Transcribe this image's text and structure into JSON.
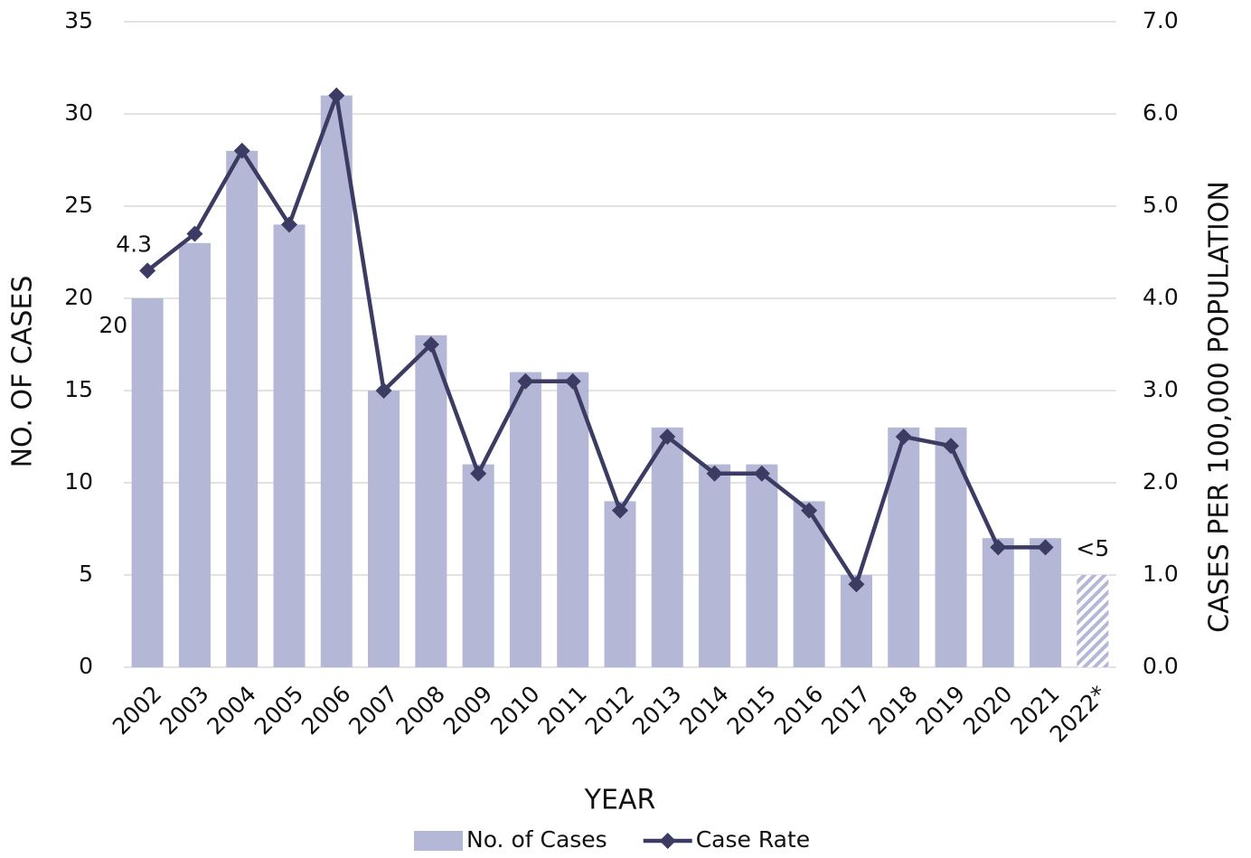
{
  "chart_data": {
    "type": "bar-line",
    "x_label": "YEAR",
    "y_label": "NO. OF CASES",
    "y2_label": "CASES PER 100,000 POPULATION",
    "categories": [
      "2002",
      "2003",
      "2004",
      "2005",
      "2006",
      "2007",
      "2008",
      "2009",
      "2010",
      "2011",
      "2012",
      "2013",
      "2014",
      "2015",
      "2016",
      "2017",
      "2018",
      "2019",
      "2020",
      "2021",
      "2022*"
    ],
    "series": [
      {
        "name": "No. of Cases",
        "type": "bar",
        "color": "#b5b7d6",
        "values": [
          20,
          23,
          28,
          24,
          31,
          15,
          18,
          11,
          16,
          16,
          9,
          13,
          11,
          11,
          9,
          5,
          13,
          13,
          7,
          7,
          5
        ],
        "value_labels": [
          "20",
          null,
          null,
          null,
          null,
          null,
          null,
          null,
          null,
          null,
          null,
          null,
          null,
          null,
          null,
          null,
          null,
          null,
          null,
          null,
          "<5"
        ],
        "hatched": [
          false,
          false,
          false,
          false,
          false,
          false,
          false,
          false,
          false,
          false,
          false,
          false,
          false,
          false,
          false,
          false,
          false,
          false,
          false,
          false,
          true
        ]
      },
      {
        "name": "Case Rate",
        "type": "line",
        "axis": "y2",
        "color": "#3b3b63",
        "values": [
          4.3,
          4.7,
          5.6,
          4.8,
          6.2,
          3.0,
          3.5,
          2.1,
          3.1,
          3.1,
          1.7,
          2.5,
          2.1,
          2.1,
          1.7,
          0.9,
          2.5,
          2.4,
          1.3,
          1.3,
          null
        ],
        "value_labels": [
          "4.3",
          null,
          null,
          null,
          null,
          null,
          null,
          null,
          null,
          null,
          null,
          null,
          null,
          null,
          null,
          null,
          null,
          null,
          null,
          null,
          null
        ]
      }
    ],
    "ylim": [
      0,
      35
    ],
    "yticks": [
      0,
      5,
      10,
      15,
      20,
      25,
      30,
      35
    ],
    "y2lim": [
      0,
      7
    ],
    "y2ticks": [
      {
        "value": 0,
        "label": "0.0"
      },
      {
        "value": 1,
        "label": "1.0"
      },
      {
        "value": 2,
        "label": "2.0"
      },
      {
        "value": 3,
        "label": "3.0"
      },
      {
        "value": 4,
        "label": "4.0"
      },
      {
        "value": 5,
        "label": "5.0"
      },
      {
        "value": 6,
        "label": "6.0"
      },
      {
        "value": 7,
        "label": "7.0"
      }
    ],
    "grid": true,
    "legend": "bottom"
  }
}
